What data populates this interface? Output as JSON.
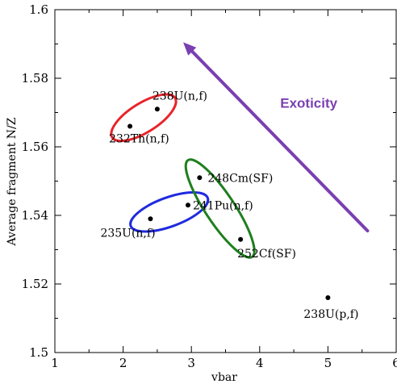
{
  "chart_data": {
    "type": "scatter",
    "title": "",
    "xlabel": "vbar",
    "ylabel": "Average fragment N/Z",
    "xlim": [
      1,
      6
    ],
    "ylim": [
      1.5,
      1.6
    ],
    "x_ticks": [
      "1",
      "2",
      "3",
      "4",
      "5",
      "6"
    ],
    "y_ticks": [
      "1.5",
      "1.52",
      "1.54",
      "1.56",
      "1.58",
      "1.6"
    ],
    "grid": false,
    "points": [
      {
        "label": "238U(n,f)",
        "x": 2.5,
        "y": 1.571
      },
      {
        "label": "232Th(n,f)",
        "x": 2.1,
        "y": 1.566
      },
      {
        "label": "248Cm(SF)",
        "x": 3.12,
        "y": 1.551
      },
      {
        "label": "241Pu(n,f)",
        "x": 2.95,
        "y": 1.543
      },
      {
        "label": "235U(n,f)",
        "x": 2.4,
        "y": 1.539
      },
      {
        "label": "252Cf(SF)",
        "x": 3.72,
        "y": 1.533
      },
      {
        "label": "238U(p,f)",
        "x": 5.0,
        "y": 1.516
      }
    ],
    "groups": [
      {
        "color": "#e8242a",
        "members": [
          "232Th(n,f)",
          "238U(n,f)"
        ]
      },
      {
        "color": "#1f2adf",
        "members": [
          "235U(n,f)",
          "241Pu(n,f)"
        ]
      },
      {
        "color": "#1e7f1e",
        "members": [
          "248Cm(SF)",
          "252Cf(SF)"
        ]
      }
    ],
    "annotation": {
      "text": "Exoticity",
      "color": "#7a3fb0",
      "from": {
        "x": 5.58,
        "y": 1.5355
      },
      "to": {
        "x": 2.88,
        "y": 1.5905
      }
    }
  }
}
